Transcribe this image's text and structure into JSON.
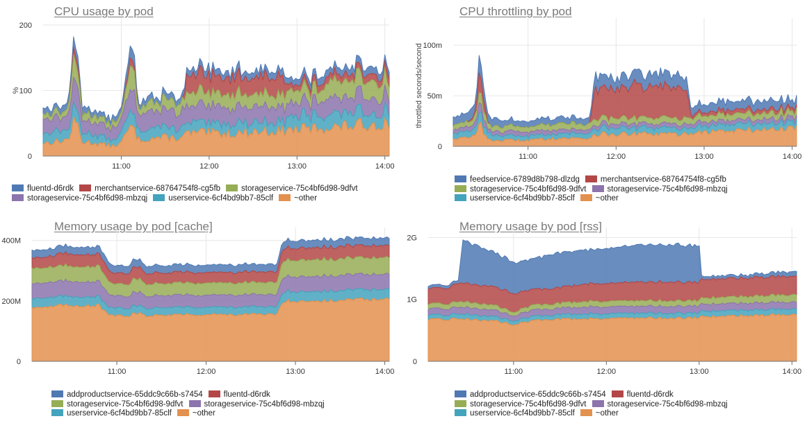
{
  "colors": {
    "blue": "#4f79b3",
    "red": "#b34747",
    "green": "#96ad56",
    "purple": "#8c74ad",
    "teal": "#44a3bd",
    "orange": "#e3914f"
  },
  "chart_data": [
    {
      "type": "area",
      "stacked": true,
      "title": "CPU usage by pod",
      "ylabel": "%",
      "ylim": [
        0,
        200
      ],
      "yticks": [
        "0",
        "100",
        "200"
      ],
      "ytick_values": [
        0,
        100,
        200
      ],
      "xlim": [
        10.11,
        14.05
      ],
      "xticks": [
        "11:00",
        "12:00",
        "13:00",
        "14:00"
      ],
      "xtick_values": [
        11,
        12,
        13,
        14
      ],
      "x": [
        10.11,
        10.25,
        10.4,
        10.45,
        10.5,
        10.55,
        10.7,
        10.9,
        11.0,
        11.08,
        11.12,
        11.2,
        11.4,
        11.7,
        11.75,
        12.0,
        12.3,
        12.6,
        12.85,
        12.9,
        13.2,
        13.5,
        13.8,
        14.05
      ],
      "series": [
        {
          "name": "fluentd-d6rdk",
          "color_key": "blue",
          "values": [
            10,
            8,
            10,
            15,
            15,
            10,
            8,
            8,
            8,
            15,
            20,
            8,
            8,
            8,
            10,
            10,
            10,
            10,
            10,
            8,
            10,
            10,
            10,
            10
          ]
        },
        {
          "name": "merchantservice-68764754f8-cg5fb",
          "color_key": "red",
          "values": [
            0,
            0,
            0,
            10,
            10,
            0,
            0,
            0,
            0,
            10,
            10,
            0,
            0,
            0,
            25,
            25,
            25,
            25,
            25,
            8,
            10,
            10,
            10,
            12
          ]
        },
        {
          "name": "storageservice-75c4bf6d98-9dfvt",
          "color_key": "green",
          "values": [
            8,
            8,
            10,
            30,
            30,
            10,
            10,
            8,
            8,
            25,
            35,
            10,
            15,
            15,
            20,
            20,
            20,
            20,
            20,
            20,
            20,
            25,
            25,
            25
          ]
        },
        {
          "name": "storageservice-75c4bf6d98-mbzqj",
          "color_key": "purple",
          "values": [
            20,
            20,
            22,
            40,
            40,
            20,
            18,
            18,
            20,
            30,
            40,
            25,
            25,
            25,
            25,
            25,
            25,
            25,
            25,
            22,
            22,
            25,
            25,
            25
          ]
        },
        {
          "name": "userservice-6cf4bd9bb7-85clf",
          "color_key": "teal",
          "values": [
            15,
            15,
            15,
            20,
            20,
            15,
            12,
            10,
            15,
            20,
            20,
            15,
            15,
            15,
            15,
            15,
            15,
            15,
            15,
            20,
            20,
            20,
            20,
            20
          ]
        },
        {
          "name": "~other",
          "color_key": "orange",
          "values": [
            20,
            22,
            25,
            50,
            50,
            22,
            20,
            15,
            20,
            40,
            45,
            25,
            28,
            28,
            35,
            35,
            35,
            38,
            38,
            40,
            42,
            45,
            48,
            50
          ]
        }
      ]
    },
    {
      "type": "area",
      "stacked": true,
      "title": "CPU throttling by pod",
      "ylabel": "throttled seconds/second",
      "ylim": [
        0,
        0.12
      ],
      "yticks": [
        "0",
        "50m",
        "100m"
      ],
      "ytick_values": [
        0,
        0.05,
        0.1
      ],
      "xlim": [
        10.15,
        14.05
      ],
      "xticks": [
        "11:00",
        "12:00",
        "13:00",
        "14:00"
      ],
      "xtick_values": [
        11,
        12,
        13,
        14
      ],
      "x": [
        10.15,
        10.3,
        10.4,
        10.45,
        10.5,
        10.55,
        10.7,
        11.0,
        11.3,
        11.7,
        11.75,
        12.0,
        12.3,
        12.6,
        12.8,
        12.85,
        13.2,
        13.5,
        13.8,
        14.05
      ],
      "series": [
        {
          "name": "feedservice-6789d8b798-dlzdg",
          "color_key": "blue",
          "values": [
            0.008,
            0.008,
            0.01,
            0.02,
            0.01,
            0.008,
            0.006,
            0.006,
            0.006,
            0.006,
            0.012,
            0.012,
            0.012,
            0.012,
            0.012,
            0.008,
            0.008,
            0.008,
            0.008,
            0.008
          ]
        },
        {
          "name": "merchantservice-68764754f8-cg5fb",
          "color_key": "red",
          "values": [
            0,
            0,
            0.003,
            0.02,
            0.01,
            0,
            0,
            0,
            0,
            0,
            0.028,
            0.03,
            0.03,
            0.03,
            0.028,
            0.003,
            0.004,
            0.004,
            0.004,
            0.004
          ]
        },
        {
          "name": "storageservice-75c4bf6d98-9dfvt",
          "color_key": "green",
          "values": [
            0.005,
            0.005,
            0.006,
            0.012,
            0.008,
            0.005,
            0.005,
            0.005,
            0.006,
            0.006,
            0.006,
            0.006,
            0.006,
            0.006,
            0.006,
            0.006,
            0.006,
            0.006,
            0.006,
            0.006
          ]
        },
        {
          "name": "storageservice-75c4bf6d98-mbzqj",
          "color_key": "purple",
          "values": [
            0.004,
            0.004,
            0.005,
            0.01,
            0.006,
            0.004,
            0.004,
            0.004,
            0.004,
            0.004,
            0.004,
            0.004,
            0.004,
            0.004,
            0.004,
            0.004,
            0.004,
            0.004,
            0.004,
            0.004
          ]
        },
        {
          "name": "userservice-6cf4bd9bb7-85clf",
          "color_key": "teal",
          "values": [
            0.006,
            0.006,
            0.007,
            0.012,
            0.008,
            0.006,
            0.005,
            0.004,
            0.005,
            0.005,
            0.006,
            0.006,
            0.006,
            0.006,
            0.006,
            0.006,
            0.006,
            0.006,
            0.006,
            0.006
          ]
        },
        {
          "name": "~other",
          "color_key": "orange",
          "values": [
            0.008,
            0.008,
            0.01,
            0.03,
            0.012,
            0.006,
            0.006,
            0.006,
            0.008,
            0.008,
            0.012,
            0.012,
            0.012,
            0.012,
            0.012,
            0.014,
            0.015,
            0.016,
            0.017,
            0.018
          ]
        }
      ]
    },
    {
      "type": "area",
      "stacked": true,
      "title": "Memory usage by pod [cache]",
      "ylabel": "",
      "ylim": [
        0,
        420000000
      ],
      "yticks": [
        "0",
        "200M",
        "400M"
      ],
      "ytick_values": [
        0,
        200000000,
        400000000
      ],
      "xlim": [
        10.05,
        14.05
      ],
      "xticks": [
        "11:00",
        "12:00",
        "13:00",
        "14:00"
      ],
      "xtick_values": [
        11,
        12,
        13,
        14
      ],
      "x": [
        10.05,
        10.3,
        10.32,
        10.8,
        10.88,
        10.95,
        11.12,
        11.2,
        11.25,
        11.3,
        11.35,
        11.45,
        11.5,
        12.8,
        12.85,
        13.5,
        13.6,
        14.05
      ],
      "series": [
        {
          "name": "addproductservice-65ddc9c66b-s7454",
          "color_key": "blue",
          "values": [
            25000000,
            25000000,
            25000000,
            25000000,
            25000000,
            25000000,
            25000000,
            25000000,
            25000000,
            25000000,
            25000000,
            25000000,
            25000000,
            25000000,
            25000000,
            25000000,
            25000000,
            25000000
          ]
        },
        {
          "name": "fluentd-d6rdk",
          "color_key": "red",
          "values": [
            35000000,
            35000000,
            40000000,
            40000000,
            40000000,
            35000000,
            35000000,
            40000000,
            40000000,
            35000000,
            35000000,
            35000000,
            35000000,
            35000000,
            40000000,
            40000000,
            40000000,
            40000000
          ]
        },
        {
          "name": "storageservice-75c4bf6d98-9dfvt",
          "color_key": "green",
          "values": [
            50000000,
            50000000,
            50000000,
            50000000,
            45000000,
            40000000,
            40000000,
            45000000,
            45000000,
            40000000,
            40000000,
            40000000,
            40000000,
            40000000,
            55000000,
            55000000,
            55000000,
            55000000
          ]
        },
        {
          "name": "storageservice-75c4bf6d98-mbzqj",
          "color_key": "purple",
          "values": [
            50000000,
            50000000,
            50000000,
            50000000,
            45000000,
            40000000,
            40000000,
            45000000,
            45000000,
            40000000,
            40000000,
            40000000,
            40000000,
            40000000,
            50000000,
            50000000,
            50000000,
            50000000
          ]
        },
        {
          "name": "userservice-6cf4bd9bb7-85clf",
          "color_key": "teal",
          "values": [
            30000000,
            30000000,
            30000000,
            30000000,
            25000000,
            25000000,
            25000000,
            25000000,
            25000000,
            25000000,
            25000000,
            25000000,
            25000000,
            25000000,
            32000000,
            32000000,
            32000000,
            32000000
          ]
        },
        {
          "name": "~other",
          "color_key": "orange",
          "values": [
            180000000,
            180000000,
            185000000,
            185000000,
            160000000,
            150000000,
            150000000,
            160000000,
            160000000,
            150000000,
            150000000,
            155000000,
            155000000,
            155000000,
            200000000,
            200000000,
            205000000,
            205000000
          ]
        }
      ]
    },
    {
      "type": "area",
      "stacked": true,
      "title": "Memory usage by pod [rss]",
      "ylabel": "",
      "ylim": [
        0,
        2050000000
      ],
      "yticks": [
        "0",
        "1G",
        "2G"
      ],
      "ytick_values": [
        0,
        1000000000,
        2000000000
      ],
      "xlim": [
        10.08,
        14.05
      ],
      "xticks": [
        "11:00",
        "12:00",
        "13:00",
        "14:00"
      ],
      "xtick_values": [
        11,
        12,
        13,
        14
      ],
      "x": [
        10.08,
        10.3,
        10.42,
        10.44,
        10.8,
        11.0,
        11.2,
        11.4,
        11.8,
        12.3,
        12.7,
        12.95,
        13.0,
        13.02,
        13.5,
        14.05
      ],
      "series": [
        {
          "name": "addproductservice-65ddc9c66b-s7454",
          "color_key": "blue",
          "values": [
            50000000,
            50000000,
            50000000,
            700000000,
            550000000,
            500000000,
            500000000,
            550000000,
            550000000,
            600000000,
            600000000,
            600000000,
            600000000,
            50000000,
            50000000,
            80000000
          ]
        },
        {
          "name": "fluentd-d6rdk",
          "color_key": "red",
          "values": [
            250000000,
            260000000,
            300000000,
            300000000,
            300000000,
            300000000,
            250000000,
            250000000,
            280000000,
            300000000,
            300000000,
            300000000,
            300000000,
            300000000,
            300000000,
            300000000
          ]
        },
        {
          "name": "storageservice-75c4bf6d98-9dfvt",
          "color_key": "green",
          "values": [
            80000000,
            80000000,
            90000000,
            90000000,
            80000000,
            60000000,
            80000000,
            80000000,
            90000000,
            90000000,
            90000000,
            90000000,
            90000000,
            100000000,
            110000000,
            120000000
          ]
        },
        {
          "name": "storageservice-75c4bf6d98-mbzqj",
          "color_key": "purple",
          "values": [
            100000000,
            100000000,
            110000000,
            110000000,
            100000000,
            80000000,
            100000000,
            100000000,
            110000000,
            110000000,
            110000000,
            110000000,
            110000000,
            110000000,
            110000000,
            110000000
          ]
        },
        {
          "name": "userservice-6cf4bd9bb7-85clf",
          "color_key": "teal",
          "values": [
            70000000,
            70000000,
            80000000,
            80000000,
            70000000,
            60000000,
            70000000,
            70000000,
            80000000,
            80000000,
            80000000,
            80000000,
            80000000,
            90000000,
            90000000,
            90000000
          ]
        },
        {
          "name": "~other",
          "color_key": "orange",
          "values": [
            670000000,
            680000000,
            690000000,
            690000000,
            650000000,
            600000000,
            650000000,
            680000000,
            690000000,
            700000000,
            700000000,
            700000000,
            700000000,
            720000000,
            740000000,
            760000000
          ]
        }
      ]
    }
  ]
}
